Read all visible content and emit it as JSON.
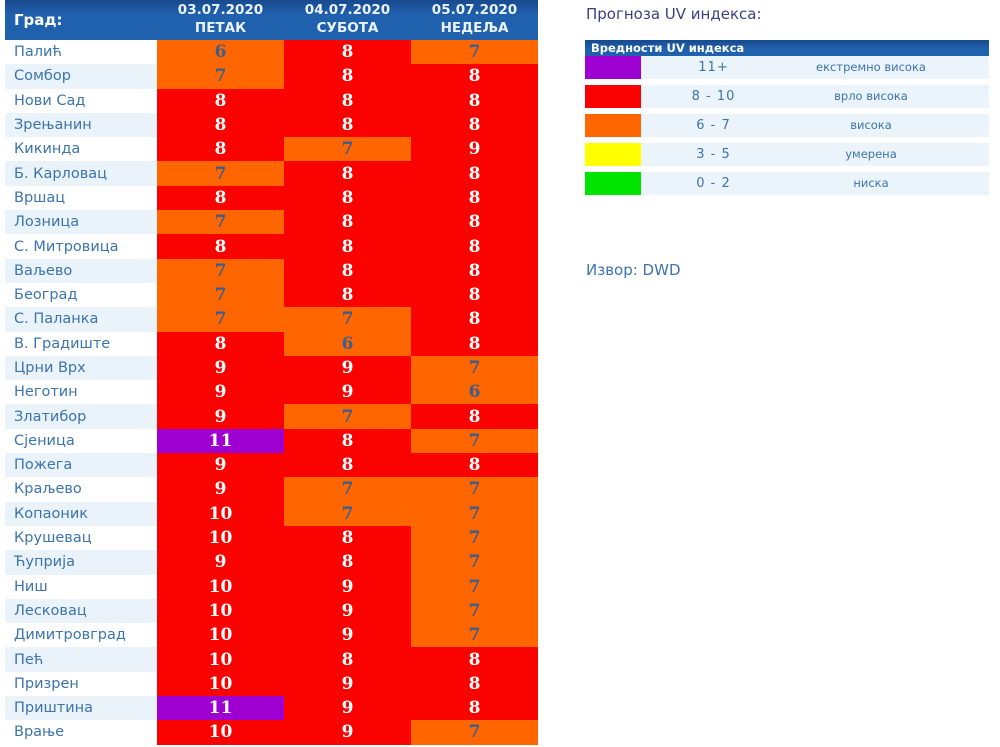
{
  "table": {
    "city_header": "Град:",
    "columns": [
      {
        "date": "03.07.2020",
        "day": "ПЕТАК"
      },
      {
        "date": "04.07.2020",
        "day": "СУБОТА"
      },
      {
        "date": "05.07.2020",
        "day": "НЕДЕЉА"
      }
    ],
    "rows": [
      {
        "city": "Палић",
        "values": [
          6,
          8,
          7
        ]
      },
      {
        "city": "Сомбор",
        "values": [
          7,
          8,
          8
        ]
      },
      {
        "city": "Нови Сад",
        "values": [
          8,
          8,
          8
        ]
      },
      {
        "city": "Зрењанин",
        "values": [
          8,
          8,
          8
        ]
      },
      {
        "city": "Кикинда",
        "values": [
          8,
          7,
          9
        ]
      },
      {
        "city": "Б. Карловац",
        "values": [
          7,
          8,
          8
        ]
      },
      {
        "city": "Вршац",
        "values": [
          8,
          8,
          8
        ]
      },
      {
        "city": "Лозница",
        "values": [
          7,
          8,
          8
        ]
      },
      {
        "city": "С. Митровица",
        "values": [
          8,
          8,
          8
        ]
      },
      {
        "city": "Ваљево",
        "values": [
          7,
          8,
          8
        ]
      },
      {
        "city": "Београд",
        "values": [
          7,
          8,
          8
        ]
      },
      {
        "city": "С. Паланка",
        "values": [
          7,
          7,
          8
        ]
      },
      {
        "city": "В. Градиште",
        "values": [
          8,
          6,
          8
        ]
      },
      {
        "city": "Црни Врх",
        "values": [
          9,
          9,
          7
        ]
      },
      {
        "city": "Неготин",
        "values": [
          9,
          9,
          6
        ]
      },
      {
        "city": "Златибор",
        "values": [
          9,
          7,
          8
        ]
      },
      {
        "city": "Сјеница",
        "values": [
          11,
          8,
          7
        ]
      },
      {
        "city": "Пожега",
        "values": [
          9,
          8,
          8
        ]
      },
      {
        "city": "Краљево",
        "values": [
          9,
          7,
          7
        ]
      },
      {
        "city": "Копаоник",
        "values": [
          10,
          7,
          7
        ]
      },
      {
        "city": "Крушевац",
        "values": [
          10,
          8,
          7
        ]
      },
      {
        "city": "Ћуприја",
        "values": [
          9,
          8,
          7
        ]
      },
      {
        "city": "Ниш",
        "values": [
          10,
          9,
          7
        ]
      },
      {
        "city": "Лесковац",
        "values": [
          10,
          9,
          7
        ]
      },
      {
        "city": "Димитровград",
        "values": [
          10,
          9,
          7
        ]
      },
      {
        "city": "Пећ",
        "values": [
          10,
          8,
          8
        ]
      },
      {
        "city": "Призрен",
        "values": [
          10,
          9,
          8
        ]
      },
      {
        "city": "Приштина",
        "values": [
          11,
          9,
          8
        ]
      },
      {
        "city": "Врање",
        "values": [
          10,
          9,
          7
        ]
      }
    ]
  },
  "legend": {
    "title": "Прогноза UV индекса:",
    "header": "Вредности UV индекса",
    "rows": [
      {
        "range": "11+",
        "label": "екстремно висока",
        "color_key": "extreme"
      },
      {
        "range": "8 - 10",
        "label": "врло висока",
        "color_key": "very_high"
      },
      {
        "range": "6 - 7",
        "label": "висока",
        "color_key": "high"
      },
      {
        "range": "3 - 5",
        "label": "умерена",
        "color_key": "moderate"
      },
      {
        "range": "0 - 2",
        "label": "ниска",
        "color_key": "low"
      }
    ]
  },
  "source_label": "Извор: DWD",
  "colors": {
    "extreme": "#9e00d2",
    "very_high": "#fa0200",
    "high": "#ff6600",
    "moderate": "#ffff00",
    "low": "#00e400",
    "header_bg": "#2061ae",
    "stripe_bg": "#e9f3f9",
    "legend_row_bg": "#eaf4fa",
    "city_text": "#3c74ae",
    "title_text": "#3a3f85",
    "value_text_dark": "#3d5e8c",
    "value_text_light": "#ffffff"
  }
}
